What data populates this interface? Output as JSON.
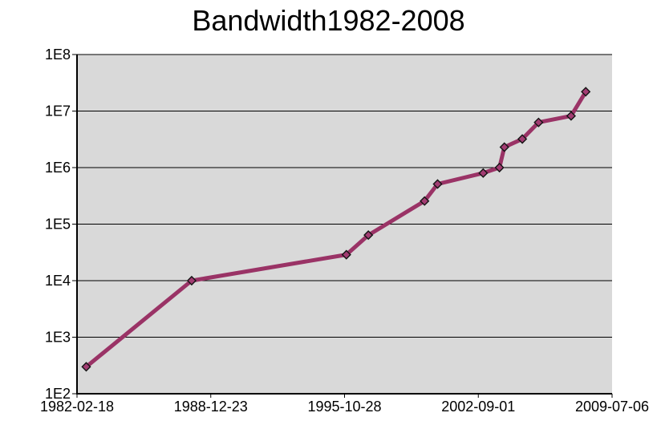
{
  "chart_data": {
    "type": "line",
    "title": "Bandwidth1982-2008",
    "xlabel": "",
    "ylabel": "",
    "y_scale": "log10",
    "y_range": [
      100,
      100000000
    ],
    "x_range": [
      "1982-02-18",
      "2009-07-06"
    ],
    "x_tick_labels": [
      "1982-02-18",
      "1988-12-23",
      "1995-10-28",
      "2002-09-01",
      "2009-07-06"
    ],
    "y_tick_labels": [
      "1E8",
      "1E7",
      "1E6",
      "1E5",
      "1E4",
      "1E3",
      "1E2"
    ],
    "y_tick_values": [
      100000000,
      10000000,
      1000000,
      100000,
      10000,
      1000,
      100
    ],
    "grid": "horizontal-decades",
    "legend": "none",
    "series": [
      {
        "name": "Bandwidth",
        "marker": "diamond",
        "points": [
          {
            "date": "1982-08-09",
            "value": 300
          },
          {
            "date": "1988-01-01",
            "value": 10000
          },
          {
            "date": "1995-12-01",
            "value": 28800
          },
          {
            "date": "1997-01-15",
            "value": 64000
          },
          {
            "date": "1999-12-01",
            "value": 256000
          },
          {
            "date": "2000-08-01",
            "value": 512000
          },
          {
            "date": "2002-12-01",
            "value": 800000
          },
          {
            "date": "2003-10-01",
            "value": 1000000
          },
          {
            "date": "2004-01-01",
            "value": 2300000
          },
          {
            "date": "2004-12-01",
            "value": 3200000
          },
          {
            "date": "2005-10-01",
            "value": 6300000
          },
          {
            "date": "2007-06-01",
            "value": 8200000
          },
          {
            "date": "2008-03-01",
            "value": 22000000
          }
        ]
      }
    ],
    "colors": {
      "line": "#9A3366",
      "marker_fill": "#A23C72",
      "marker_stroke": "#141414",
      "plot_background": "#D9D9D9",
      "gridline": "#000000",
      "axis": "#000000",
      "text": "#000000",
      "page_background": "#FFFFFF"
    }
  }
}
